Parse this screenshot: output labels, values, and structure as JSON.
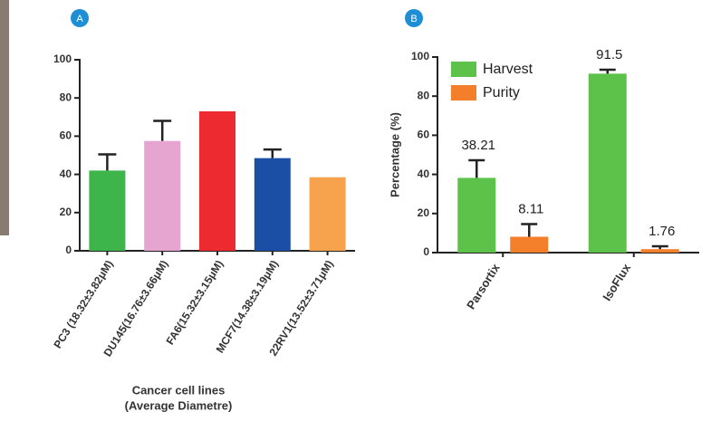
{
  "chart_data": [
    {
      "type": "bar",
      "panel": "A",
      "categories": [
        "PC3 (18.32±3.82μM)",
        "DU145(16.76±3.66μM)",
        "FA6(15.32±3.15μM)",
        "MCF7(14.38±3.19μM)",
        "22RV1(13.52±3.71μM)"
      ],
      "values": [
        42,
        57.5,
        73,
        48.5,
        38.5
      ],
      "errors": [
        8.5,
        10.5,
        null,
        4.5,
        null
      ],
      "colors": [
        "#3db54a",
        "#e6a4d0",
        "#ed2a30",
        "#1b4fa6",
        "#f7a24c"
      ],
      "xlabel": [
        "Cancer cell lines",
        "(Average Diametre)"
      ],
      "ylim": [
        0,
        100
      ],
      "yticks": [
        0,
        20,
        40,
        60,
        80,
        100
      ]
    },
    {
      "type": "bar",
      "panel": "B",
      "ylabel": "Percentage (%)",
      "categories": [
        "Parsortix",
        "IsoFlux"
      ],
      "series": [
        {
          "name": "Harvest",
          "color": "#5cc24a",
          "values": [
            38.21,
            91.5
          ],
          "errors": [
            9,
            2
          ]
        },
        {
          "name": "Purity",
          "color": "#f47f2a",
          "values": [
            8.11,
            1.76
          ],
          "errors": [
            6.5,
            1.5
          ]
        }
      ],
      "legend": "upper-left",
      "ylim": [
        0,
        100
      ],
      "yticks": [
        0,
        20,
        40,
        60,
        80,
        100
      ]
    }
  ]
}
